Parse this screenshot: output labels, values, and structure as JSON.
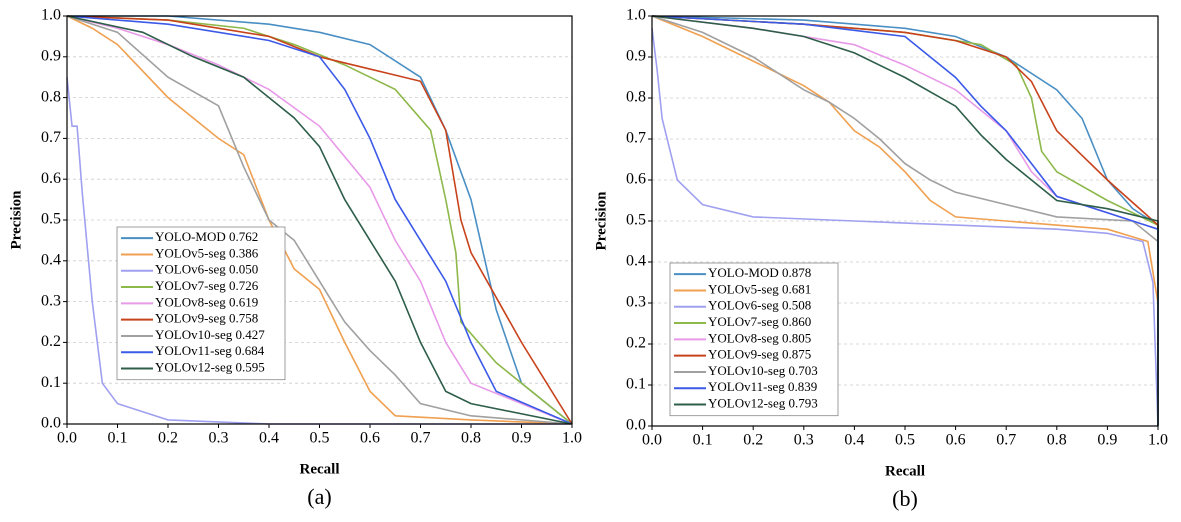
{
  "chart_data": [
    {
      "type": "line",
      "caption": "(a)",
      "x_label": "Recall",
      "y_label": "Precision",
      "xlim": [
        0,
        1
      ],
      "ylim": [
        0,
        1
      ],
      "grid": true,
      "legend": "lower left",
      "xticks": [
        {
          "value": 0,
          "label": "0.0"
        },
        0.1,
        0.2,
        0.3,
        0.4,
        0.5,
        0.6,
        0.7,
        0.8,
        0.9,
        {
          "value": 1,
          "label": "1.0"
        }
      ],
      "yticks": [
        {
          "value": 0,
          "label": "0.0"
        },
        0.1,
        0.2,
        0.3,
        0.4,
        0.5,
        0.6,
        0.7,
        0.8,
        0.9,
        {
          "value": 1,
          "label": "1.0"
        }
      ],
      "series": [
        {
          "name": "YOLO-MOD 0.762",
          "color": "#4a8fc4",
          "x": [
            0,
            0.2,
            0.4,
            0.5,
            0.6,
            0.7,
            0.75,
            0.8,
            0.85,
            0.9,
            1
          ],
          "values": [
            1,
            1,
            0.98,
            0.96,
            0.93,
            0.85,
            0.72,
            0.55,
            0.28,
            0.1,
            0
          ]
        },
        {
          "name": "YOLOv5-seg 0.386",
          "color": "#f0a050",
          "x": [
            0,
            0.05,
            0.1,
            0.2,
            0.3,
            0.35,
            0.4,
            0.45,
            0.5,
            0.55,
            0.6,
            0.65,
            0.8,
            1
          ],
          "values": [
            1,
            0.97,
            0.93,
            0.8,
            0.7,
            0.66,
            0.5,
            0.38,
            0.33,
            0.2,
            0.08,
            0.02,
            0.01,
            0
          ]
        },
        {
          "name": "YOLOv6-seg 0.050",
          "color": "#a0a0f0",
          "x": [
            0,
            0.01,
            0.02,
            0.03,
            0.05,
            0.07,
            0.1,
            0.2,
            0.4,
            1
          ],
          "values": [
            0.85,
            0.73,
            0.73,
            0.57,
            0.3,
            0.1,
            0.05,
            0.01,
            0,
            0
          ]
        },
        {
          "name": "YOLOv7-seg 0.726",
          "color": "#8db84a",
          "x": [
            0,
            0.2,
            0.35,
            0.45,
            0.55,
            0.65,
            0.72,
            0.75,
            0.77,
            0.78,
            0.85,
            1
          ],
          "values": [
            1,
            0.99,
            0.97,
            0.93,
            0.88,
            0.82,
            0.72,
            0.55,
            0.42,
            0.25,
            0.15,
            0
          ]
        },
        {
          "name": "YOLOv8-seg 0.619",
          "color": "#e89ae8",
          "x": [
            0,
            0.1,
            0.2,
            0.3,
            0.4,
            0.5,
            0.6,
            0.65,
            0.7,
            0.75,
            0.8,
            1
          ],
          "values": [
            1,
            0.97,
            0.93,
            0.88,
            0.82,
            0.73,
            0.58,
            0.45,
            0.35,
            0.2,
            0.1,
            0
          ]
        },
        {
          "name": "YOLOv9-seg 0.758",
          "color": "#c8431c",
          "x": [
            0,
            0.2,
            0.4,
            0.5,
            0.6,
            0.7,
            0.75,
            0.78,
            0.8,
            0.9,
            1
          ],
          "values": [
            1,
            0.99,
            0.95,
            0.9,
            0.87,
            0.84,
            0.72,
            0.5,
            0.42,
            0.2,
            0
          ]
        },
        {
          "name": "YOLOv10-seg 0.427",
          "color": "#a0a0a0",
          "x": [
            0,
            0.1,
            0.2,
            0.3,
            0.35,
            0.4,
            0.45,
            0.5,
            0.55,
            0.6,
            0.65,
            0.7,
            0.8,
            1
          ],
          "values": [
            1,
            0.96,
            0.85,
            0.78,
            0.63,
            0.5,
            0.45,
            0.35,
            0.25,
            0.18,
            0.12,
            0.05,
            0.02,
            0
          ]
        },
        {
          "name": "YOLOv11-seg 0.684",
          "color": "#3c5ae8",
          "x": [
            0,
            0.2,
            0.4,
            0.5,
            0.55,
            0.6,
            0.65,
            0.7,
            0.75,
            0.8,
            0.85,
            1
          ],
          "values": [
            1,
            0.98,
            0.94,
            0.9,
            0.82,
            0.7,
            0.55,
            0.45,
            0.35,
            0.2,
            0.08,
            0
          ]
        },
        {
          "name": "YOLOv12-seg 0.595",
          "color": "#2e5e4a",
          "x": [
            0,
            0.15,
            0.25,
            0.35,
            0.45,
            0.5,
            0.55,
            0.6,
            0.65,
            0.7,
            0.75,
            0.8,
            1
          ],
          "values": [
            1,
            0.96,
            0.9,
            0.85,
            0.75,
            0.68,
            0.55,
            0.45,
            0.35,
            0.2,
            0.08,
            0.05,
            0
          ]
        }
      ]
    },
    {
      "type": "line",
      "caption": "(b)",
      "x_label": "Recall",
      "y_label": "Precision",
      "xlim": [
        0,
        1
      ],
      "ylim": [
        0,
        1
      ],
      "grid": true,
      "legend": "lower left",
      "xticks": [
        {
          "value": 0,
          "label": "0.0"
        },
        0.1,
        0.2,
        0.3,
        0.4,
        0.5,
        0.6,
        0.7,
        0.8,
        0.9,
        {
          "value": 1,
          "label": "1.0"
        }
      ],
      "yticks": [
        {
          "value": 0,
          "label": "0.0"
        },
        0.1,
        0.2,
        0.3,
        0.4,
        0.5,
        0.6,
        0.7,
        0.8,
        0.9,
        {
          "value": 1,
          "label": "1.0"
        }
      ],
      "series": [
        {
          "name": "YOLO-MOD 0.878",
          "color": "#4a8fc4",
          "x": [
            0,
            0.3,
            0.5,
            0.6,
            0.7,
            0.8,
            0.85,
            0.9,
            0.95,
            1,
            1
          ],
          "values": [
            1,
            0.99,
            0.97,
            0.95,
            0.9,
            0.82,
            0.75,
            0.6,
            0.53,
            0.49,
            0
          ]
        },
        {
          "name": "YOLOv5-seg 0.681",
          "color": "#f0a050",
          "x": [
            0,
            0.1,
            0.2,
            0.3,
            0.35,
            0.4,
            0.45,
            0.5,
            0.55,
            0.6,
            0.7,
            0.9,
            0.98,
            1,
            1
          ],
          "values": [
            1,
            0.95,
            0.89,
            0.83,
            0.79,
            0.72,
            0.68,
            0.62,
            0.55,
            0.51,
            0.5,
            0.48,
            0.45,
            0.3,
            0
          ]
        },
        {
          "name": "YOLOv6-seg 0.508",
          "color": "#a0a0f0",
          "x": [
            0,
            0.01,
            0.02,
            0.05,
            0.1,
            0.2,
            0.4,
            0.6,
            0.8,
            0.9,
            0.97,
            0.99,
            1
          ],
          "values": [
            0.97,
            0.87,
            0.75,
            0.6,
            0.54,
            0.51,
            0.5,
            0.49,
            0.48,
            0.47,
            0.45,
            0.35,
            0
          ]
        },
        {
          "name": "YOLOv7-seg 0.860",
          "color": "#8db84a",
          "x": [
            0,
            0.3,
            0.5,
            0.65,
            0.72,
            0.75,
            0.77,
            0.8,
            0.9,
            1,
            1
          ],
          "values": [
            1,
            0.98,
            0.96,
            0.93,
            0.88,
            0.8,
            0.67,
            0.62,
            0.55,
            0.49,
            0
          ]
        },
        {
          "name": "YOLOv8-seg 0.805",
          "color": "#e89ae8",
          "x": [
            0,
            0.2,
            0.4,
            0.5,
            0.6,
            0.7,
            0.75,
            0.8,
            0.9,
            1,
            1
          ],
          "values": [
            1,
            0.97,
            0.93,
            0.88,
            0.82,
            0.72,
            0.62,
            0.56,
            0.52,
            0.48,
            0
          ]
        },
        {
          "name": "YOLOv9-seg 0.875",
          "color": "#c8431c",
          "x": [
            0,
            0.3,
            0.5,
            0.6,
            0.7,
            0.75,
            0.8,
            0.85,
            0.9,
            1,
            1
          ],
          "values": [
            1,
            0.98,
            0.96,
            0.94,
            0.9,
            0.84,
            0.72,
            0.66,
            0.6,
            0.49,
            0
          ]
        },
        {
          "name": "YOLOv10-seg 0.703",
          "color": "#a0a0a0",
          "x": [
            0,
            0.1,
            0.2,
            0.3,
            0.35,
            0.4,
            0.45,
            0.5,
            0.55,
            0.6,
            0.7,
            0.8,
            0.95,
            1,
            1
          ],
          "values": [
            1,
            0.96,
            0.9,
            0.82,
            0.79,
            0.75,
            0.7,
            0.64,
            0.6,
            0.57,
            0.54,
            0.51,
            0.5,
            0.45,
            0
          ]
        },
        {
          "name": "YOLOv11-seg 0.839",
          "color": "#3c5ae8",
          "x": [
            0,
            0.3,
            0.5,
            0.55,
            0.6,
            0.65,
            0.7,
            0.75,
            0.8,
            0.9,
            1,
            1
          ],
          "values": [
            1,
            0.98,
            0.95,
            0.9,
            0.85,
            0.78,
            0.72,
            0.64,
            0.56,
            0.52,
            0.48,
            0
          ]
        },
        {
          "name": "YOLOv12-seg 0.793",
          "color": "#2e5e4a",
          "x": [
            0,
            0.2,
            0.3,
            0.4,
            0.5,
            0.6,
            0.65,
            0.7,
            0.75,
            0.8,
            0.9,
            1,
            1
          ],
          "values": [
            1,
            0.97,
            0.95,
            0.91,
            0.85,
            0.78,
            0.71,
            0.65,
            0.6,
            0.55,
            0.53,
            0.5,
            0
          ]
        }
      ]
    }
  ]
}
